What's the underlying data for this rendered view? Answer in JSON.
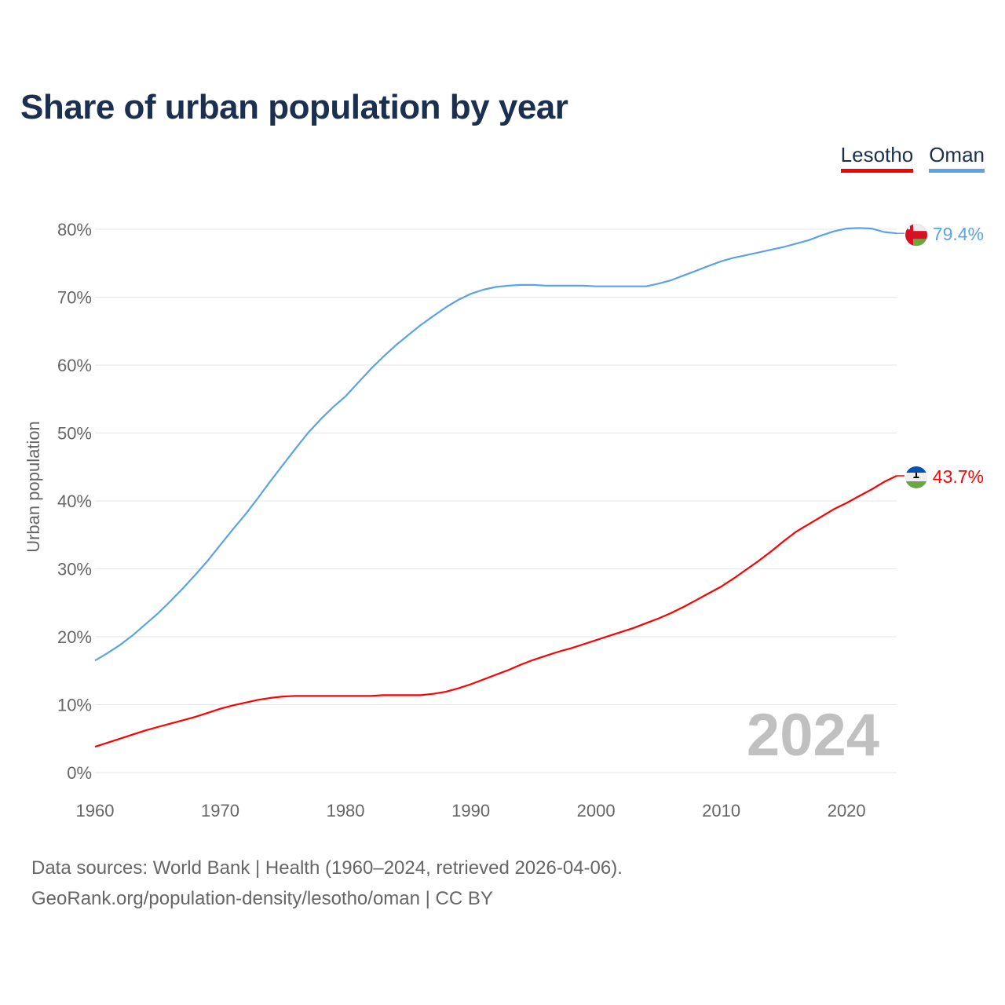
{
  "title": "Share of urban population by year",
  "legend": [
    {
      "label": "Lesotho",
      "color": "#ff0000"
    },
    {
      "label": "Oman",
      "color": "#5ba3e8"
    }
  ],
  "year_watermark": "2024",
  "footer": {
    "line1": "Data sources: World Bank | Health (1960–2024, retrieved 2026-04-06).",
    "line2": "GeoRank.org/population-density/lesotho/oman | CC BY"
  },
  "chart_data": {
    "type": "line",
    "title": "Share of urban population by year",
    "xlabel": "",
    "ylabel": "Urban population",
    "xlim": [
      1960,
      2024
    ],
    "ylim": [
      0,
      80
    ],
    "x_ticks": [
      "1960",
      "1970",
      "1980",
      "1990",
      "2000",
      "2010",
      "2020"
    ],
    "y_ticks": [
      "0%",
      "10%",
      "20%",
      "30%",
      "40%",
      "50%",
      "60%",
      "70%",
      "80%"
    ],
    "grid": true,
    "legend_position": "top-right",
    "x": [
      1960,
      1961,
      1962,
      1963,
      1964,
      1965,
      1966,
      1967,
      1968,
      1969,
      1970,
      1971,
      1972,
      1973,
      1974,
      1975,
      1976,
      1977,
      1978,
      1979,
      1980,
      1981,
      1982,
      1983,
      1984,
      1985,
      1986,
      1987,
      1988,
      1989,
      1990,
      1991,
      1992,
      1993,
      1994,
      1995,
      1996,
      1997,
      1998,
      1999,
      2000,
      2001,
      2002,
      2003,
      2004,
      2005,
      2006,
      2007,
      2008,
      2009,
      2010,
      2011,
      2012,
      2013,
      2014,
      2015,
      2016,
      2017,
      2018,
      2019,
      2020,
      2021,
      2022,
      2023,
      2024
    ],
    "series": [
      {
        "name": "Lesotho",
        "color": "#ff0000",
        "end_label": "43.7%",
        "flag": "lesotho-flag",
        "values": [
          3.8,
          4.4,
          5.0,
          5.6,
          6.2,
          6.7,
          7.2,
          7.7,
          8.2,
          8.8,
          9.4,
          9.9,
          10.3,
          10.7,
          11.0,
          11.2,
          11.3,
          11.3,
          11.3,
          11.3,
          11.3,
          11.3,
          11.3,
          11.4,
          11.4,
          11.4,
          11.4,
          11.6,
          11.9,
          12.4,
          13.0,
          13.7,
          14.4,
          15.1,
          15.9,
          16.6,
          17.2,
          17.8,
          18.3,
          18.9,
          19.5,
          20.1,
          20.7,
          21.3,
          22.0,
          22.7,
          23.5,
          24.4,
          25.4,
          26.4,
          27.4,
          28.6,
          29.9,
          31.2,
          32.6,
          34.1,
          35.5,
          36.6,
          37.7,
          38.8,
          39.7,
          40.7,
          41.7,
          42.8,
          43.7
        ]
      },
      {
        "name": "Oman",
        "color": "#5ba3e8",
        "end_label": "79.4%",
        "flag": "oman-flag",
        "values": [
          16.5,
          17.6,
          18.8,
          20.2,
          21.8,
          23.4,
          25.2,
          27.1,
          29.1,
          31.2,
          33.5,
          35.8,
          38.0,
          40.4,
          42.9,
          45.3,
          47.7,
          50.0,
          52.0,
          53.8,
          55.4,
          57.4,
          59.4,
          61.2,
          62.9,
          64.4,
          65.9,
          67.2,
          68.5,
          69.6,
          70.5,
          71.1,
          71.5,
          71.7,
          71.8,
          71.8,
          71.7,
          71.7,
          71.7,
          71.7,
          71.6,
          71.6,
          71.6,
          71.6,
          71.6,
          72.0,
          72.5,
          73.2,
          73.9,
          74.6,
          75.3,
          75.8,
          76.2,
          76.6,
          77.0,
          77.4,
          77.9,
          78.4,
          79.1,
          79.7,
          80.1,
          80.2,
          80.1,
          79.6,
          79.4
        ]
      }
    ]
  }
}
